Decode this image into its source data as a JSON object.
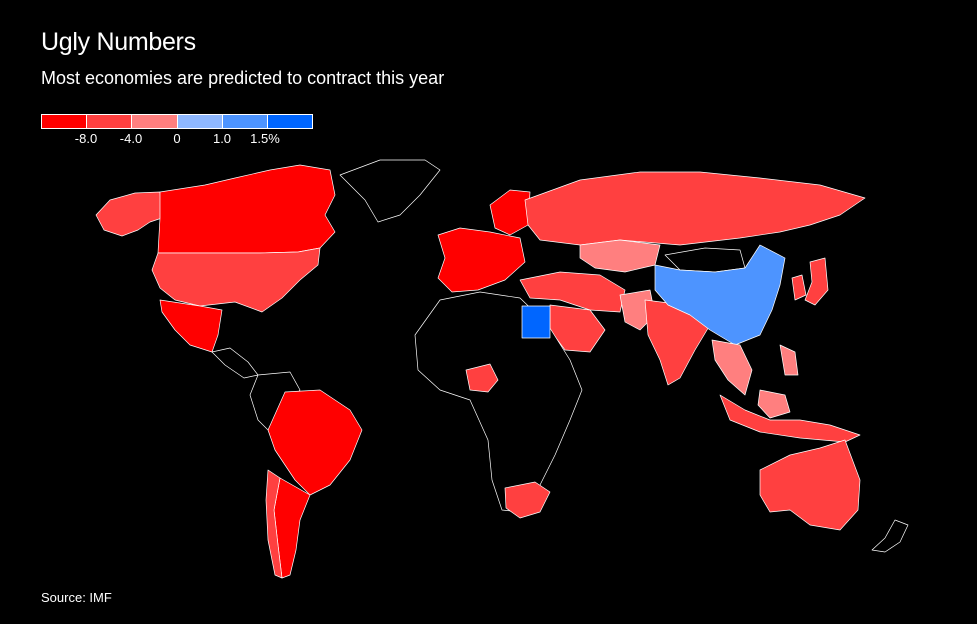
{
  "title": "Ugly Numbers",
  "subtitle": "Most economies are predicted to contract this year",
  "legend": {
    "colors": [
      "#ff0000",
      "#ff4040",
      "#ff7f7f",
      "#8fb8ff",
      "#4d94ff",
      "#0066ff"
    ],
    "ticks": [
      "-8.0",
      "-4.0",
      "0",
      "1.0",
      "1.5%"
    ]
  },
  "regions": {
    "alaska": "#ff4040",
    "canada": "#ff0000",
    "greenland": "#000000",
    "usa": "#ff4040",
    "mexico": "#ff0000",
    "central_america": "#000000",
    "south_america_north": "#000000",
    "brazil": "#ff0000",
    "argentina": "#ff0000",
    "chile": "#ff4040",
    "western_europe": "#ff0000",
    "scandinavia": "#ff0000",
    "russia": "#ff4040",
    "kazakhstan": "#ff7f7f",
    "middle_east": "#ff4040",
    "saudi_arabia": "#ff4040",
    "egypt": "#0066ff",
    "africa": "#000000",
    "nigeria": "#ff4040",
    "south_africa": "#ff4040",
    "india": "#ff4040",
    "pakistan": "#ff7f7f",
    "china": "#4d94ff",
    "mongolia": "#000000",
    "japan": "#ff4040",
    "korea": "#ff4040",
    "southeast_asia": "#ff7f7f",
    "indonesia": "#ff4040",
    "australia": "#ff4040",
    "new_zealand": "#000000"
  },
  "source": "Source: IMF"
}
